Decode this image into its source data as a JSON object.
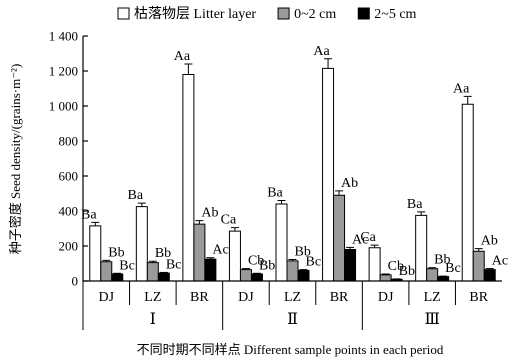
{
  "chart_data": {
    "type": "bar",
    "ylabel": "种子密度 Seed density/(grains·m⁻²)",
    "xlabel": "不同时期不同样点 Different sample points in each period",
    "ylim": [
      0,
      1400
    ],
    "yticks": [
      0,
      200,
      400,
      600,
      800,
      1000,
      1200,
      1400
    ],
    "ytick_labels": [
      "0",
      "200",
      "400",
      "600",
      "800",
      "1 000",
      "1 200",
      "1 400"
    ],
    "legend_position": "top",
    "periods": [
      "Ⅰ",
      "Ⅱ",
      "Ⅲ"
    ],
    "sites": [
      "DJ",
      "LZ",
      "BR"
    ],
    "categories": [
      "DJ",
      "LZ",
      "BR",
      "DJ",
      "LZ",
      "BR",
      "DJ",
      "LZ",
      "BR"
    ],
    "series": [
      {
        "name": "枯落物层 Litter layer",
        "fill": "#ffffff",
        "values": [
          315,
          425,
          1180,
          285,
          440,
          1215,
          190,
          375,
          1010
        ],
        "errors": [
          20,
          20,
          60,
          20,
          20,
          55,
          15,
          20,
          45
        ],
        "labels": [
          "Ba",
          "Ba",
          "Aa",
          "Ca",
          "Ba",
          "Aa",
          "Ca",
          "Ba",
          "Aa"
        ]
      },
      {
        "name": "0~2 cm",
        "fill": "#9a9a9a",
        "values": [
          110,
          105,
          325,
          65,
          115,
          490,
          35,
          70,
          170
        ],
        "errors": [
          8,
          8,
          20,
          6,
          8,
          25,
          5,
          6,
          15
        ],
        "labels": [
          "Bb",
          "Bb",
          "Ab",
          "Cb",
          "Bb",
          "Ab",
          "Cb",
          "Bb",
          "Ab"
        ]
      },
      {
        "name": "2~5 cm",
        "fill": "#000000",
        "values": [
          40,
          45,
          125,
          40,
          60,
          180,
          10,
          25,
          65
        ],
        "errors": [
          4,
          4,
          8,
          4,
          5,
          12,
          2,
          3,
          6
        ],
        "labels": [
          "Bc",
          "Bc",
          "Ac",
          "Bb",
          "Bc",
          "Ac",
          "Bb",
          "Bc",
          "Ac"
        ]
      }
    ]
  }
}
